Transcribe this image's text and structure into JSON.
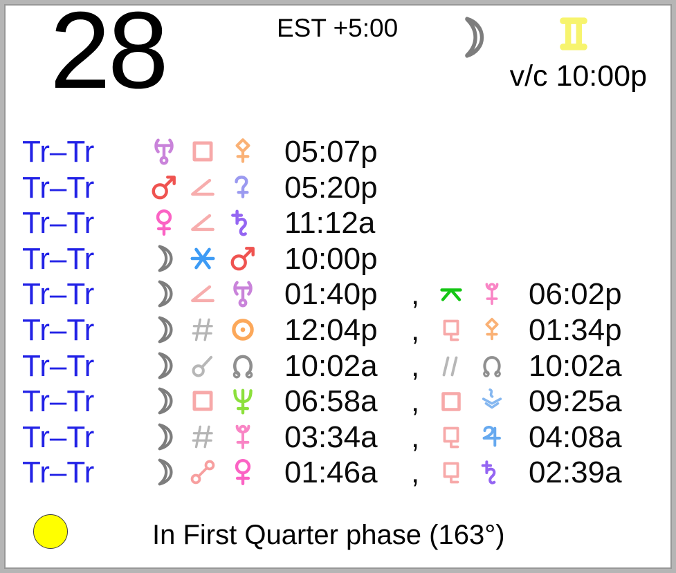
{
  "header": {
    "day_number": "28",
    "timezone": "EST +5:00",
    "moon_icon": "moon",
    "moon_color": "#7d7d7d",
    "sign_icon": "gemini",
    "sign_color": "#f7f46e",
    "void_of_course": "v/c 10:00p"
  },
  "label_color": "#2222e6",
  "aspect_rows": [
    {
      "label": "Tr–Tr",
      "planet1": {
        "icon": "uranus",
        "color": "#c983da"
      },
      "aspect": {
        "icon": "square",
        "color": "#f7a9a9"
      },
      "planet2": {
        "icon": "pallas",
        "color": "#fab175"
      },
      "time": "05:07p",
      "second": null
    },
    {
      "label": "Tr–Tr",
      "planet1": {
        "icon": "mars",
        "color": "#ef5350"
      },
      "aspect": {
        "icon": "semisquare",
        "color": "#f7adad"
      },
      "planet2": {
        "icon": "ceres",
        "color": "#9b9af0"
      },
      "time": "05:20p",
      "second": null
    },
    {
      "label": "Tr–Tr",
      "planet1": {
        "icon": "venus",
        "color": "#fb63c4"
      },
      "aspect": {
        "icon": "semisquare",
        "color": "#f7adad"
      },
      "planet2": {
        "icon": "saturn",
        "color": "#9465f2"
      },
      "time": "11:12a",
      "second": null
    },
    {
      "label": "Tr–Tr",
      "planet1": {
        "icon": "moon",
        "color": "#7d7d7d"
      },
      "aspect": {
        "icon": "sextile",
        "color": "#3d9bf5"
      },
      "planet2": {
        "icon": "mars",
        "color": "#ef5350"
      },
      "time": "10:00p",
      "second": null
    },
    {
      "label": "Tr–Tr",
      "planet1": {
        "icon": "moon",
        "color": "#7d7d7d"
      },
      "aspect": {
        "icon": "semisquare",
        "color": "#f7adad"
      },
      "planet2": {
        "icon": "uranus",
        "color": "#c983da"
      },
      "time": "01:40p",
      "second": {
        "separator": ",",
        "aspect": {
          "icon": "quincunx",
          "color": "#15c615"
        },
        "planet": {
          "icon": "pluto",
          "color": "#f985c5"
        },
        "time": "06:02p"
      }
    },
    {
      "label": "Tr–Tr",
      "planet1": {
        "icon": "moon",
        "color": "#7d7d7d"
      },
      "aspect": {
        "icon": "contraparallel",
        "color": "#b5b5b5"
      },
      "planet2": {
        "icon": "sun",
        "color": "#fca85a"
      },
      "time": "12:04p",
      "second": {
        "separator": ",",
        "aspect": {
          "icon": "sesquiquadrate",
          "color": "#f7a9a9"
        },
        "planet": {
          "icon": "pallas",
          "color": "#fab175"
        },
        "time": "01:34p"
      }
    },
    {
      "label": "Tr–Tr",
      "planet1": {
        "icon": "moon",
        "color": "#7d7d7d"
      },
      "aspect": {
        "icon": "conjunction",
        "color": "#b7b7b7"
      },
      "planet2": {
        "icon": "node",
        "color": "#8f8f8f"
      },
      "time": "10:02a",
      "second": {
        "separator": ",",
        "aspect": {
          "icon": "parallel",
          "color": "#b7b7b7"
        },
        "planet": {
          "icon": "node",
          "color": "#8f8f8f"
        },
        "time": "10:02a"
      }
    },
    {
      "label": "Tr–Tr",
      "planet1": {
        "icon": "moon",
        "color": "#7d7d7d"
      },
      "aspect": {
        "icon": "square",
        "color": "#f7a9a9"
      },
      "planet2": {
        "icon": "neptune",
        "color": "#8ce03c"
      },
      "time": "06:58a",
      "second": {
        "separator": ",",
        "aspect": {
          "icon": "square",
          "color": "#f7a9a9"
        },
        "planet": {
          "icon": "vesta",
          "color": "#85b7f0"
        },
        "time": "09:25a"
      }
    },
    {
      "label": "Tr–Tr",
      "planet1": {
        "icon": "moon",
        "color": "#7d7d7d"
      },
      "aspect": {
        "icon": "contraparallel",
        "color": "#b5b5b5"
      },
      "planet2": {
        "icon": "pluto",
        "color": "#f985c5"
      },
      "time": "03:34a",
      "second": {
        "separator": ",",
        "aspect": {
          "icon": "sesquiquadrate",
          "color": "#f7a9a9"
        },
        "planet": {
          "icon": "jupiter",
          "color": "#66a9ef"
        },
        "time": "04:08a"
      }
    },
    {
      "label": "Tr–Tr",
      "planet1": {
        "icon": "moon",
        "color": "#7d7d7d"
      },
      "aspect": {
        "icon": "opposition",
        "color": "#f79f9f"
      },
      "planet2": {
        "icon": "venus",
        "color": "#fb63c4"
      },
      "time": "01:46a",
      "second": {
        "separator": ",",
        "aspect": {
          "icon": "sesquiquadrate",
          "color": "#f7a9a9"
        },
        "planet": {
          "icon": "saturn",
          "color": "#9465f2"
        },
        "time": "02:39a"
      }
    }
  ],
  "footer": {
    "phase_text": "In First Quarter phase (163°)",
    "phase_circle_color": "#ffff00"
  }
}
